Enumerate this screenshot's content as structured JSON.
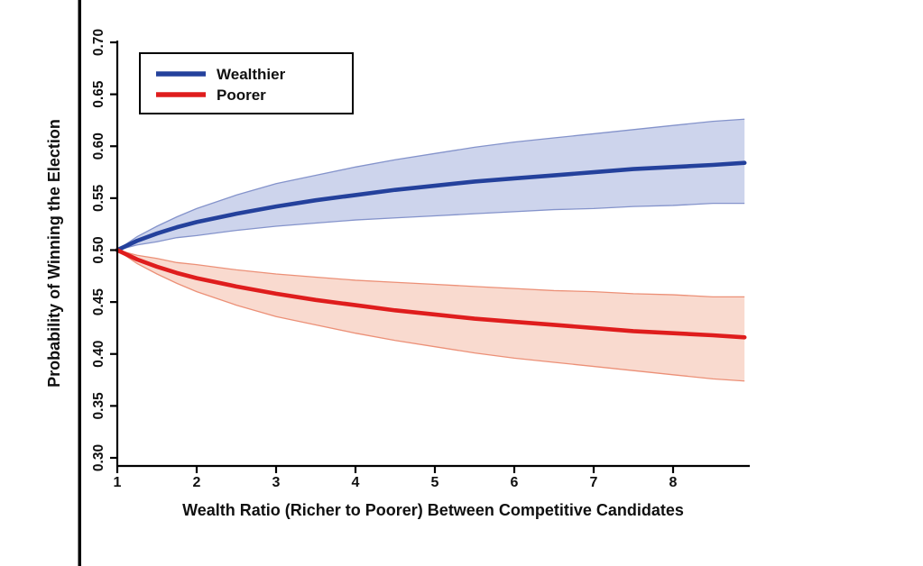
{
  "figure": {
    "background_color": "#ffffff",
    "margin_rule_color": "#000000"
  },
  "chart_data": {
    "type": "line",
    "title": "",
    "xlabel": "Wealth Ratio (Richer to Poorer) Between Competitive Candidates",
    "ylabel": "Probability of Winning the Election",
    "xlim": [
      1,
      8.97
    ],
    "ylim": [
      0.3,
      0.7
    ],
    "grid": false,
    "x_ticks": [
      1,
      2,
      3,
      4,
      5,
      6,
      7,
      8
    ],
    "x_tick_labels": [
      "1",
      "2",
      "3",
      "4",
      "5",
      "6",
      "7",
      "8"
    ],
    "y_ticks": [
      0.3,
      0.35,
      0.4,
      0.45,
      0.5,
      0.55,
      0.6,
      0.65,
      0.7
    ],
    "y_tick_labels": [
      "0.30",
      "0.35",
      "0.40",
      "0.45",
      "0.50",
      "0.55",
      "0.60",
      "0.65",
      "0.70"
    ],
    "legend": {
      "position": "top-left",
      "entries": [
        {
          "label": "Wealthier",
          "color": "#24419c"
        },
        {
          "label": "Poorer",
          "color": "#df1d1d"
        }
      ]
    },
    "x": [
      1,
      1.25,
      1.5,
      1.75,
      2,
      2.5,
      3,
      3.5,
      4,
      4.5,
      5,
      5.5,
      6,
      6.5,
      7,
      7.5,
      8,
      8.5,
      8.9
    ],
    "series": [
      {
        "name": "Wealthier",
        "color": "#24419c",
        "band_fill": "#cdd4ec",
        "band_edge": "#8493cb",
        "mean": [
          0.5,
          0.509,
          0.516,
          0.522,
          0.527,
          0.535,
          0.542,
          0.548,
          0.553,
          0.558,
          0.562,
          0.566,
          0.569,
          0.572,
          0.575,
          0.578,
          0.58,
          0.582,
          0.584
        ],
        "upper": [
          0.5,
          0.513,
          0.523,
          0.532,
          0.54,
          0.553,
          0.564,
          0.572,
          0.58,
          0.587,
          0.593,
          0.599,
          0.604,
          0.608,
          0.612,
          0.616,
          0.62,
          0.624,
          0.626
        ],
        "lower": [
          0.5,
          0.505,
          0.508,
          0.512,
          0.514,
          0.519,
          0.523,
          0.526,
          0.529,
          0.531,
          0.533,
          0.535,
          0.537,
          0.539,
          0.54,
          0.542,
          0.543,
          0.545,
          0.545
        ]
      },
      {
        "name": "Poorer",
        "color": "#df1d1d",
        "band_fill": "#f9dacf",
        "band_edge": "#ec9077",
        "mean": [
          0.5,
          0.491,
          0.484,
          0.478,
          0.473,
          0.465,
          0.458,
          0.452,
          0.447,
          0.442,
          0.438,
          0.434,
          0.431,
          0.428,
          0.425,
          0.422,
          0.42,
          0.418,
          0.416
        ],
        "upper": [
          0.5,
          0.495,
          0.492,
          0.488,
          0.486,
          0.481,
          0.477,
          0.474,
          0.471,
          0.469,
          0.467,
          0.465,
          0.463,
          0.461,
          0.46,
          0.458,
          0.457,
          0.455,
          0.455
        ],
        "lower": [
          0.5,
          0.487,
          0.477,
          0.468,
          0.46,
          0.447,
          0.436,
          0.428,
          0.42,
          0.413,
          0.407,
          0.401,
          0.396,
          0.392,
          0.388,
          0.384,
          0.38,
          0.376,
          0.374
        ]
      }
    ]
  }
}
